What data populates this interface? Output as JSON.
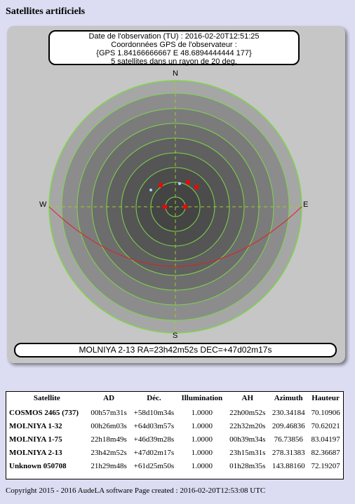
{
  "page_title": "Satellites artificiels",
  "info": {
    "line1": "Date de l'observation (TU) : 2016-02-20T12:51:25",
    "line2": "Coordonnées GPS de l'observateur :",
    "line3": "{GPS 1.84166666667 E 48.6894444444 177}",
    "line4": "5 satellites dans un rayon de 20 deg."
  },
  "compass": {
    "n": "N",
    "s": "S",
    "e": "E",
    "w": "W"
  },
  "selected_info": "MOLNIYA 2-13 RA=23h42m52s DEC=+47d02m17s",
  "colors": {
    "background": "#dcdcf2",
    "panel": "#c6c6c6",
    "ring_line": "#7ed64a",
    "horizon": "#e02020",
    "satellite": "#ff0000",
    "star": "#aad4ff"
  },
  "table": {
    "headers": [
      "Satellite",
      "AD",
      "Déc.",
      "Illumination",
      "AH",
      "Azimuth",
      "Hauteur"
    ],
    "rows": [
      {
        "name": "COSMOS 2465 (737)",
        "ad": "00h57m31s",
        "dec": "+58d10m34s",
        "illum": "1.0000",
        "ah": "22h00m52s",
        "az": "230.34184",
        "alt": "70.10906"
      },
      {
        "name": "MOLNIYA 1-32",
        "ad": "00h26m03s",
        "dec": "+64d03m57s",
        "illum": "1.0000",
        "ah": "22h32m20s",
        "az": "209.46836",
        "alt": "70.62021"
      },
      {
        "name": "MOLNIYA 1-75",
        "ad": "22h18m49s",
        "dec": "+46d39m28s",
        "illum": "1.0000",
        "ah": "00h39m34s",
        "az": "76.73856",
        "alt": "83.04197"
      },
      {
        "name": "MOLNIYA 2-13",
        "ad": "23h42m52s",
        "dec": "+47d02m17s",
        "illum": "1.0000",
        "ah": "23h15m31s",
        "az": "278.31383",
        "alt": "82.36687"
      },
      {
        "name": "Unknown 050708",
        "ad": "21h29m48s",
        "dec": "+61d25m50s",
        "illum": "1.0000",
        "ah": "01h28m35s",
        "az": "143.88160",
        "alt": "72.19207"
      }
    ]
  },
  "footer": "Copyright 2015 - 2016 AudeLA software  Page created : 2016-02-20T12:53:08 UTC"
}
